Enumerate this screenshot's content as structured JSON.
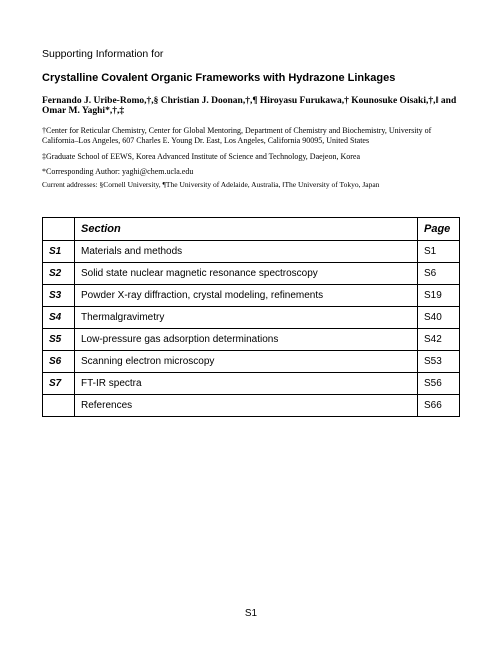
{
  "header": {
    "supporting": "Supporting Information for",
    "title": "Crystalline Covalent Organic Frameworks with Hydrazone Linkages",
    "authors": "Fernando J. Uribe-Romo,†,§ Christian J. Doonan,†,¶ Hiroyasu Furukawa,† Kounosuke Oisaki,†,‖ and Omar M. Yaghi*,†,‡",
    "affiliation1": "†Center for Reticular Chemistry, Center for Global Mentoring, Department of Chemistry and Biochemistry, University of California–Los Angeles, 607 Charles E. Young Dr. East, Los Angeles, California 90095, United States",
    "affiliation2": "‡Graduate School of EEWS, Korea Advanced Institute of Science and Technology, Daejeon, Korea",
    "corresponding": "*Corresponding Author: yaghi@chem.ucla.edu",
    "currentAddresses": "Current addresses: §Cornell University, ¶The University of Adelaide, Australia, ‖The University of Tokyo, Japan"
  },
  "toc": {
    "headerSection": "Section",
    "headerPage": "Page",
    "rows": [
      {
        "id": "S1",
        "section": "Materials and methods",
        "page": "S1"
      },
      {
        "id": "S2",
        "section": "Solid state nuclear magnetic resonance spectroscopy",
        "page": "S6"
      },
      {
        "id": "S3",
        "section": "Powder X-ray diffraction, crystal modeling, refinements",
        "page": "S19"
      },
      {
        "id": "S4",
        "section": "Thermalgravimetry",
        "page": "S40"
      },
      {
        "id": "S5",
        "section": "Low-pressure gas adsorption determinations",
        "page": "S42"
      },
      {
        "id": "S6",
        "section": "Scanning electron microscopy",
        "page": "S53"
      },
      {
        "id": "S7",
        "section": "FT-IR spectra",
        "page": "S56"
      },
      {
        "id": "",
        "section": "References",
        "page": "S66"
      }
    ]
  },
  "footer": {
    "pageNumber": "S1"
  }
}
